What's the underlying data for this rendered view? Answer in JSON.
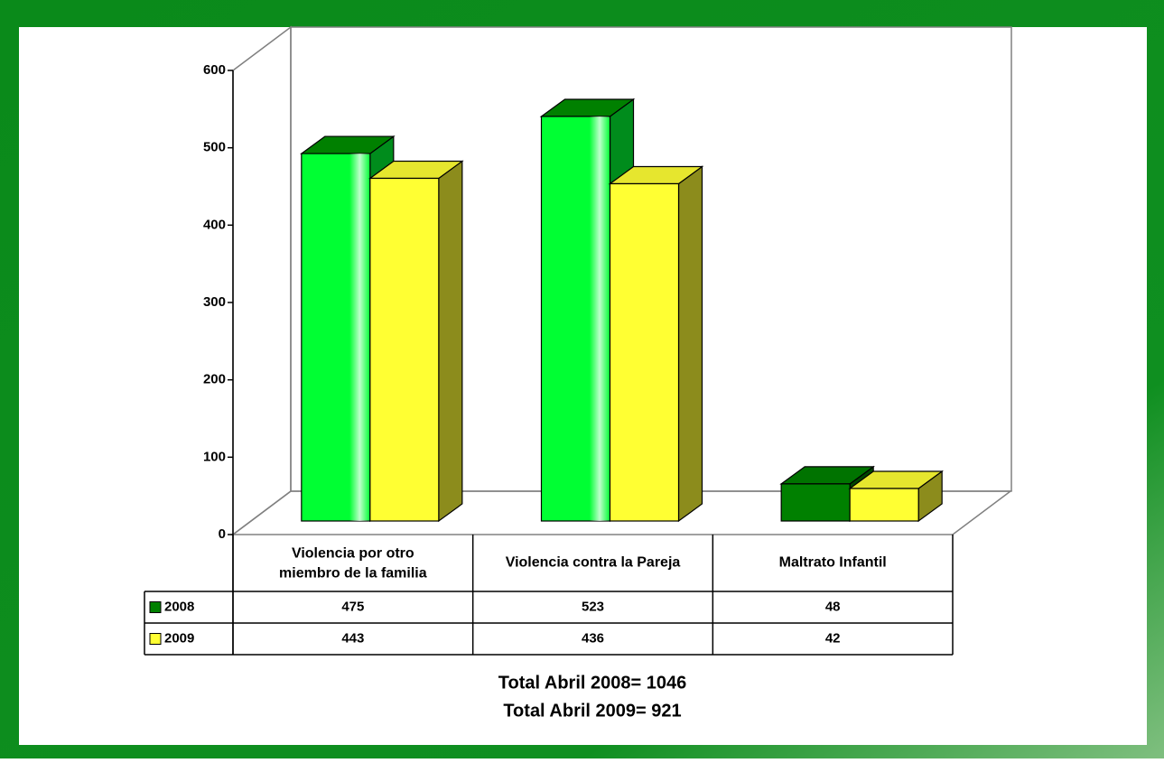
{
  "chart_data": {
    "type": "bar3d",
    "categories": [
      "Violencia por otro miembro de la familia",
      "Violencia contra la Pareja",
      "Maltrato Infantil"
    ],
    "series": [
      {
        "name": "2008",
        "color": "#008000",
        "bar_colors": [
          "#00ff33",
          "#00ff33",
          "#008000"
        ],
        "values": [
          475,
          523,
          48
        ]
      },
      {
        "name": "2009",
        "color": "#ffff33",
        "bar_colors": [
          "#ffff33",
          "#ffff33",
          "#ffff33"
        ],
        "values": [
          443,
          436,
          42
        ]
      }
    ],
    "ylim": [
      0,
      600
    ],
    "yticks": [
      0,
      100,
      200,
      300,
      400,
      500,
      600
    ],
    "annotations": [
      "Total Abril 2008= 1046",
      "Total Abril 2009= 921"
    ],
    "data_table": true
  }
}
